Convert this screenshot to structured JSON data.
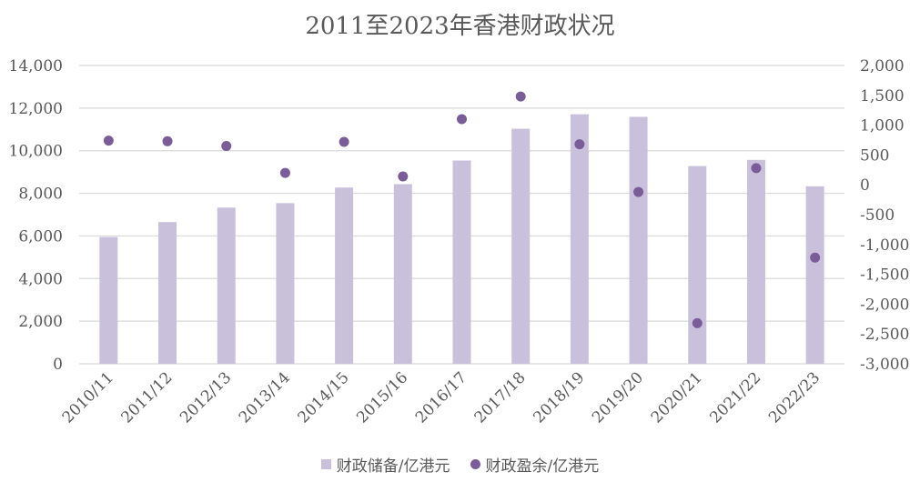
{
  "chart_data": {
    "type": "bar",
    "title": "2011至2023年香港财政状况",
    "categories": [
      "2010/11",
      "2011/12",
      "2012/13",
      "2013/14",
      "2014/15",
      "2015/16",
      "2016/17",
      "2017/18",
      "2018/19",
      "2019/20",
      "2020/21",
      "2021/22",
      "2022/23"
    ],
    "series": [
      {
        "name": "财政储备/亿港元",
        "type": "bar",
        "axis": "left",
        "color": "#c9c1dc",
        "values": [
          5950,
          6650,
          7330,
          7540,
          8270,
          8430,
          9540,
          11030,
          11710,
          11590,
          9280,
          9570,
          8330
        ]
      },
      {
        "name": "财政盈余/亿港元",
        "type": "scatter",
        "axis": "right",
        "color": "#7a5c99",
        "values": [
          740,
          730,
          650,
          200,
          720,
          140,
          1100,
          1480,
          680,
          -120,
          -2320,
          280,
          -1220
        ]
      }
    ],
    "y_left": {
      "min": 0,
      "max": 14000,
      "ticks": [
        "14,000",
        "12,000",
        "10,000",
        "8,000",
        "6,000",
        "4,000",
        "2,000",
        "0"
      ]
    },
    "y_right": {
      "min": -3000,
      "max": 2000,
      "ticks": [
        "2,000",
        "1,500",
        "1,000",
        "500",
        "0",
        "-500",
        "-1,000",
        "-1,500",
        "-2,000",
        "-2,500",
        "-3,000"
      ]
    },
    "grid": true,
    "legend_position": "bottom"
  }
}
